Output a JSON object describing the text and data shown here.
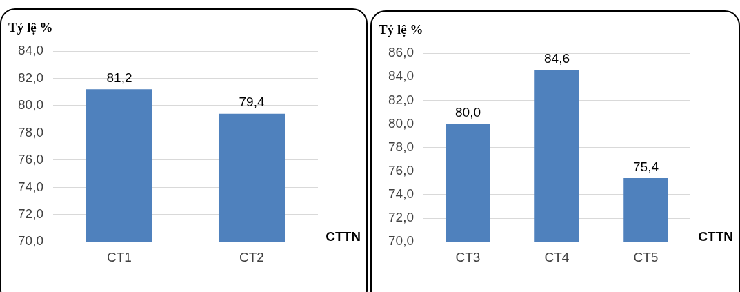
{
  "chart_data": [
    {
      "type": "bar",
      "ylabel": "Tỷ lệ %",
      "xlabel": "CTTN",
      "categories": [
        "CT1",
        "CT2"
      ],
      "values": [
        81.2,
        79.4
      ],
      "value_labels": [
        "81,2",
        "79,4"
      ],
      "color": "#4f81bd",
      "ylim": [
        70,
        84
      ],
      "yticks": [
        {
          "value": 70,
          "label": "70,0"
        },
        {
          "value": 72,
          "label": "72,0"
        },
        {
          "value": 74,
          "label": "74,0"
        },
        {
          "value": 76,
          "label": "76,0"
        },
        {
          "value": 78,
          "label": "78,0"
        },
        {
          "value": 80,
          "label": "80,0"
        },
        {
          "value": 82,
          "label": "82,0"
        },
        {
          "value": 84,
          "label": "84,0"
        }
      ],
      "grid": "y",
      "legend": false
    },
    {
      "type": "bar",
      "ylabel": "Tỷ lệ %",
      "xlabel": "CTTN",
      "categories": [
        "CT3",
        "CT4",
        "CT5"
      ],
      "values": [
        80.0,
        84.6,
        75.4
      ],
      "value_labels": [
        "80,0",
        "84,6",
        "75,4"
      ],
      "color": "#4f81bd",
      "ylim": [
        70,
        86
      ],
      "yticks": [
        {
          "value": 70,
          "label": "70,0"
        },
        {
          "value": 72,
          "label": "72,0"
        },
        {
          "value": 74,
          "label": "74,0"
        },
        {
          "value": 76,
          "label": "76,0"
        },
        {
          "value": 78,
          "label": "78,0"
        },
        {
          "value": 80,
          "label": "80,0"
        },
        {
          "value": 82,
          "label": "82,0"
        },
        {
          "value": 84,
          "label": "84,0"
        },
        {
          "value": 86,
          "label": "86,0"
        }
      ],
      "grid": "y",
      "legend": false
    }
  ]
}
